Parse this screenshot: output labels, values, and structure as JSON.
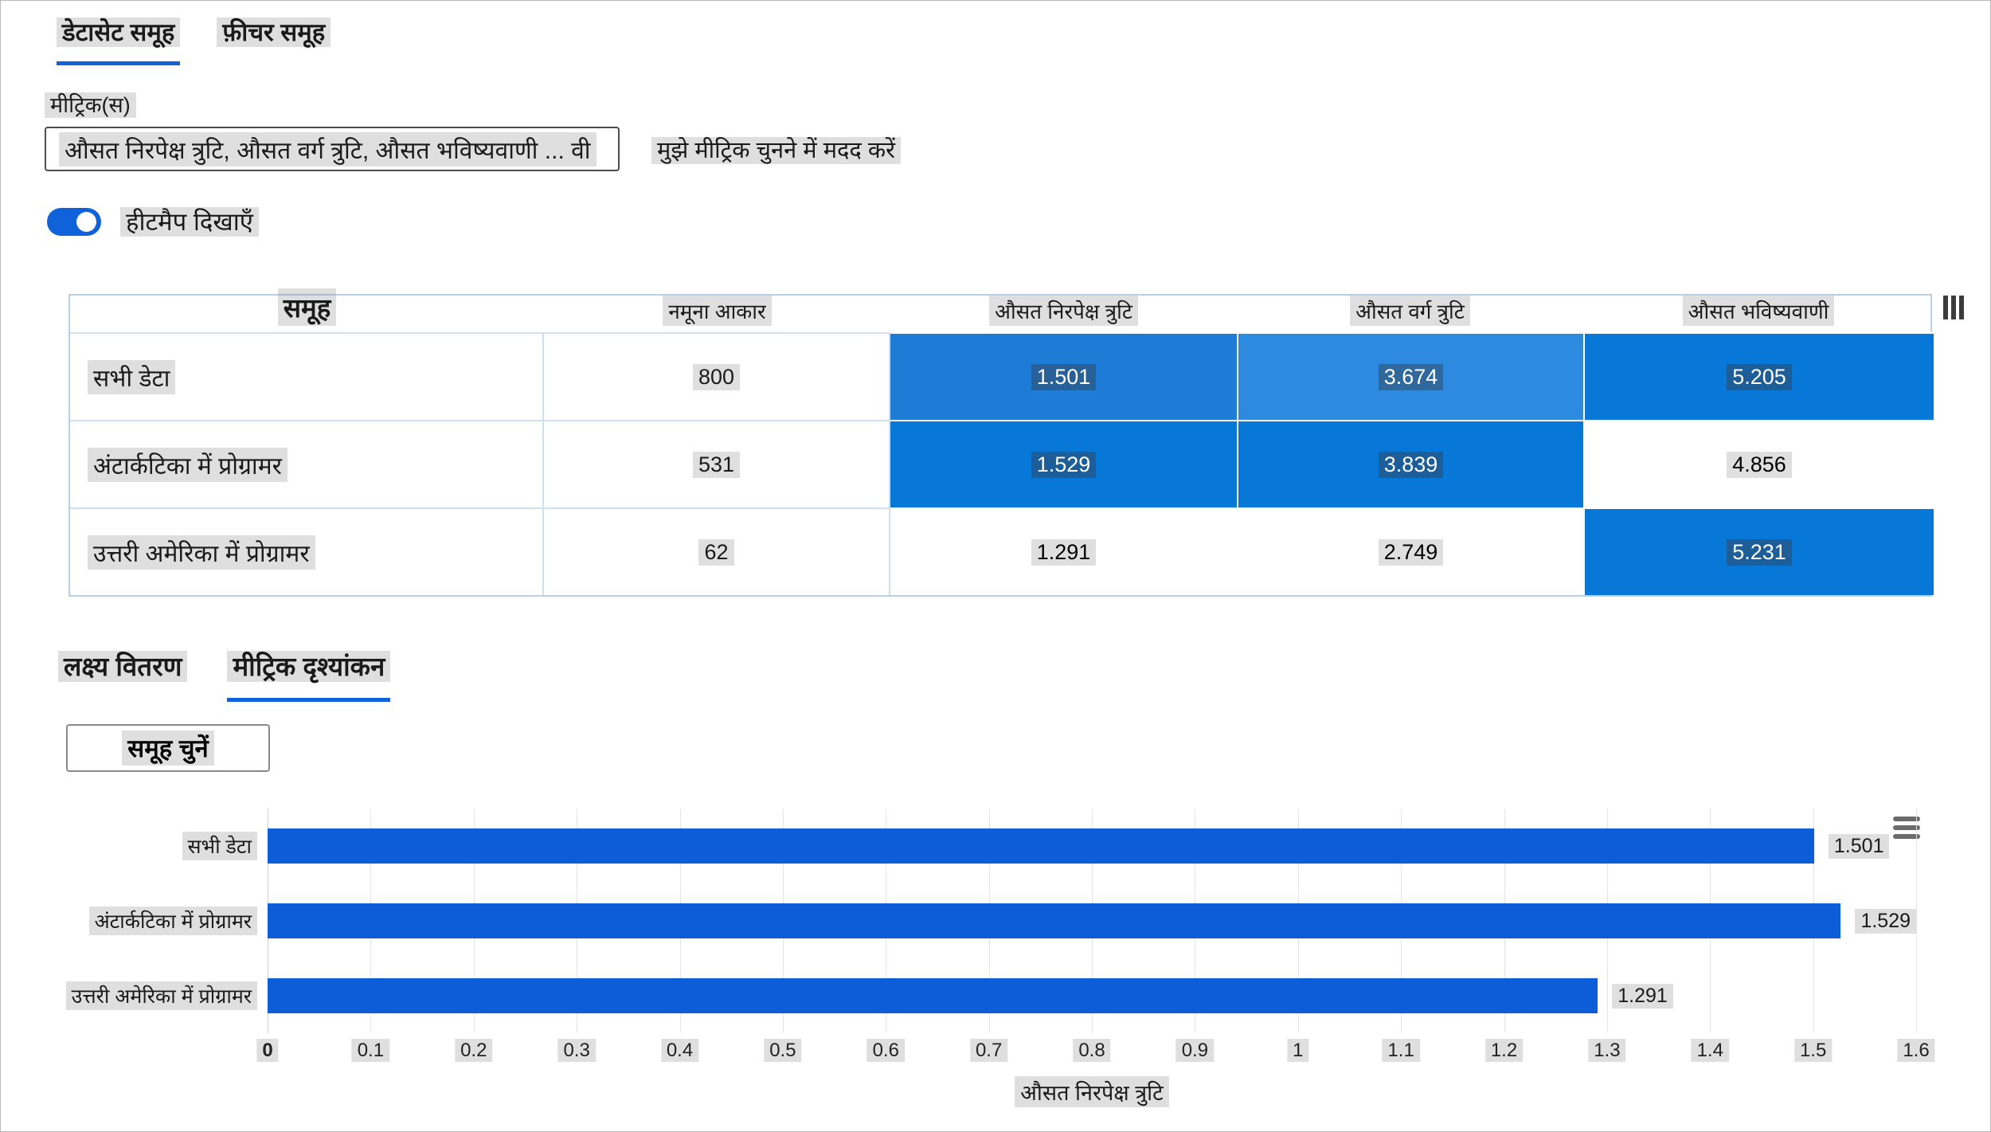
{
  "colors": {
    "accent_blue": "#0F62D9",
    "bar_blue": "#0D5DD9",
    "heat_mid_blue": "#1E7CD6",
    "heat_light_blue": "#2E8ADE",
    "heat_strong_blue": "#0878D8",
    "table_border": "#b7cfe9"
  },
  "icons": {
    "table_menu": "vertical-bars-menu",
    "chart_menu": "hamburger-menu"
  },
  "top_tabs": {
    "items": [
      {
        "label": "डेटासेट समूह",
        "active": true
      },
      {
        "label": "फ़ीचर समूह",
        "active": false
      }
    ]
  },
  "metrics": {
    "label": "मीट्रिक(स)",
    "selected_text": "औसत निरपेक्ष त्रुटि, औसत वर्ग त्रुटि, औसत भविष्यवाणी ... वी",
    "help_link": "मुझे मीट्रिक चुनने में मदद करें"
  },
  "heatmap_toggle": {
    "label": "हीटमैप दिखाएँ",
    "on": true
  },
  "table": {
    "columns": [
      "समूह",
      "नमूना आकार",
      "औसत निरपेक्ष त्रुटि",
      "औसत वर्ग त्रुटि",
      "औसत भविष्यवाणी"
    ],
    "rows": [
      {
        "name": "सभी डेटा",
        "sample_size": "800",
        "cells": [
          {
            "value": "1.501",
            "bg": "#1E7CD6",
            "fg": "#ffffff"
          },
          {
            "value": "3.674",
            "bg": "#2E8ADE",
            "fg": "#ffffff"
          },
          {
            "value": "5.205",
            "bg": "#0878D8",
            "fg": "#ffffff"
          }
        ]
      },
      {
        "name": "अंटार्कटिका में प्रोग्रामर",
        "sample_size": "531",
        "cells": [
          {
            "value": "1.529",
            "bg": "#0878D8",
            "fg": "#ffffff"
          },
          {
            "value": "3.839",
            "bg": "#0878D8",
            "fg": "#ffffff"
          },
          {
            "value": "4.856",
            "bg": "#ffffff",
            "fg": "#000000"
          }
        ]
      },
      {
        "name": "उत्तरी अमेरिका में प्रोग्रामर",
        "sample_size": "62",
        "cells": [
          {
            "value": "1.291",
            "bg": "#ffffff",
            "fg": "#000000"
          },
          {
            "value": "2.749",
            "bg": "#ffffff",
            "fg": "#000000"
          },
          {
            "value": "5.231",
            "bg": "#0878D8",
            "fg": "#ffffff"
          }
        ]
      }
    ]
  },
  "bottom_tabs": {
    "items": [
      {
        "label": "लक्ष्य वितरण",
        "active": false
      },
      {
        "label": "मीट्रिक दृश्यांकन",
        "active": true
      }
    ]
  },
  "cohort_button": {
    "label": "समूह चुनें"
  },
  "chart_data": {
    "type": "bar",
    "orientation": "horizontal",
    "title": "",
    "categories": [
      "सभी डेटा",
      "अंटार्कटिका में प्रोग्रामर",
      "उत्तरी अमेरिका में प्रोग्रामर"
    ],
    "values": [
      1.501,
      1.529,
      1.291
    ],
    "value_labels": [
      "1.501",
      "1.529",
      "1.291"
    ],
    "xlabel": "औसत निरपेक्ष त्रुटि",
    "ylabel": "",
    "xlim": [
      0,
      1.6
    ],
    "xticks": [
      0,
      0.1,
      0.2,
      0.3,
      0.4,
      0.5,
      0.6,
      0.7,
      0.8,
      0.9,
      1,
      1.1,
      1.2,
      1.3,
      1.4,
      1.5,
      1.6
    ],
    "xtick_labels": [
      "0",
      "0.1",
      "0.2",
      "0.3",
      "0.4",
      "0.5",
      "0.6",
      "0.7",
      "0.8",
      "0.9",
      "1",
      "1.1",
      "1.2",
      "1.3",
      "1.4",
      "1.5",
      "1.6"
    ],
    "bar_color": "#0D5DD9",
    "grid": true,
    "legend": "none"
  }
}
